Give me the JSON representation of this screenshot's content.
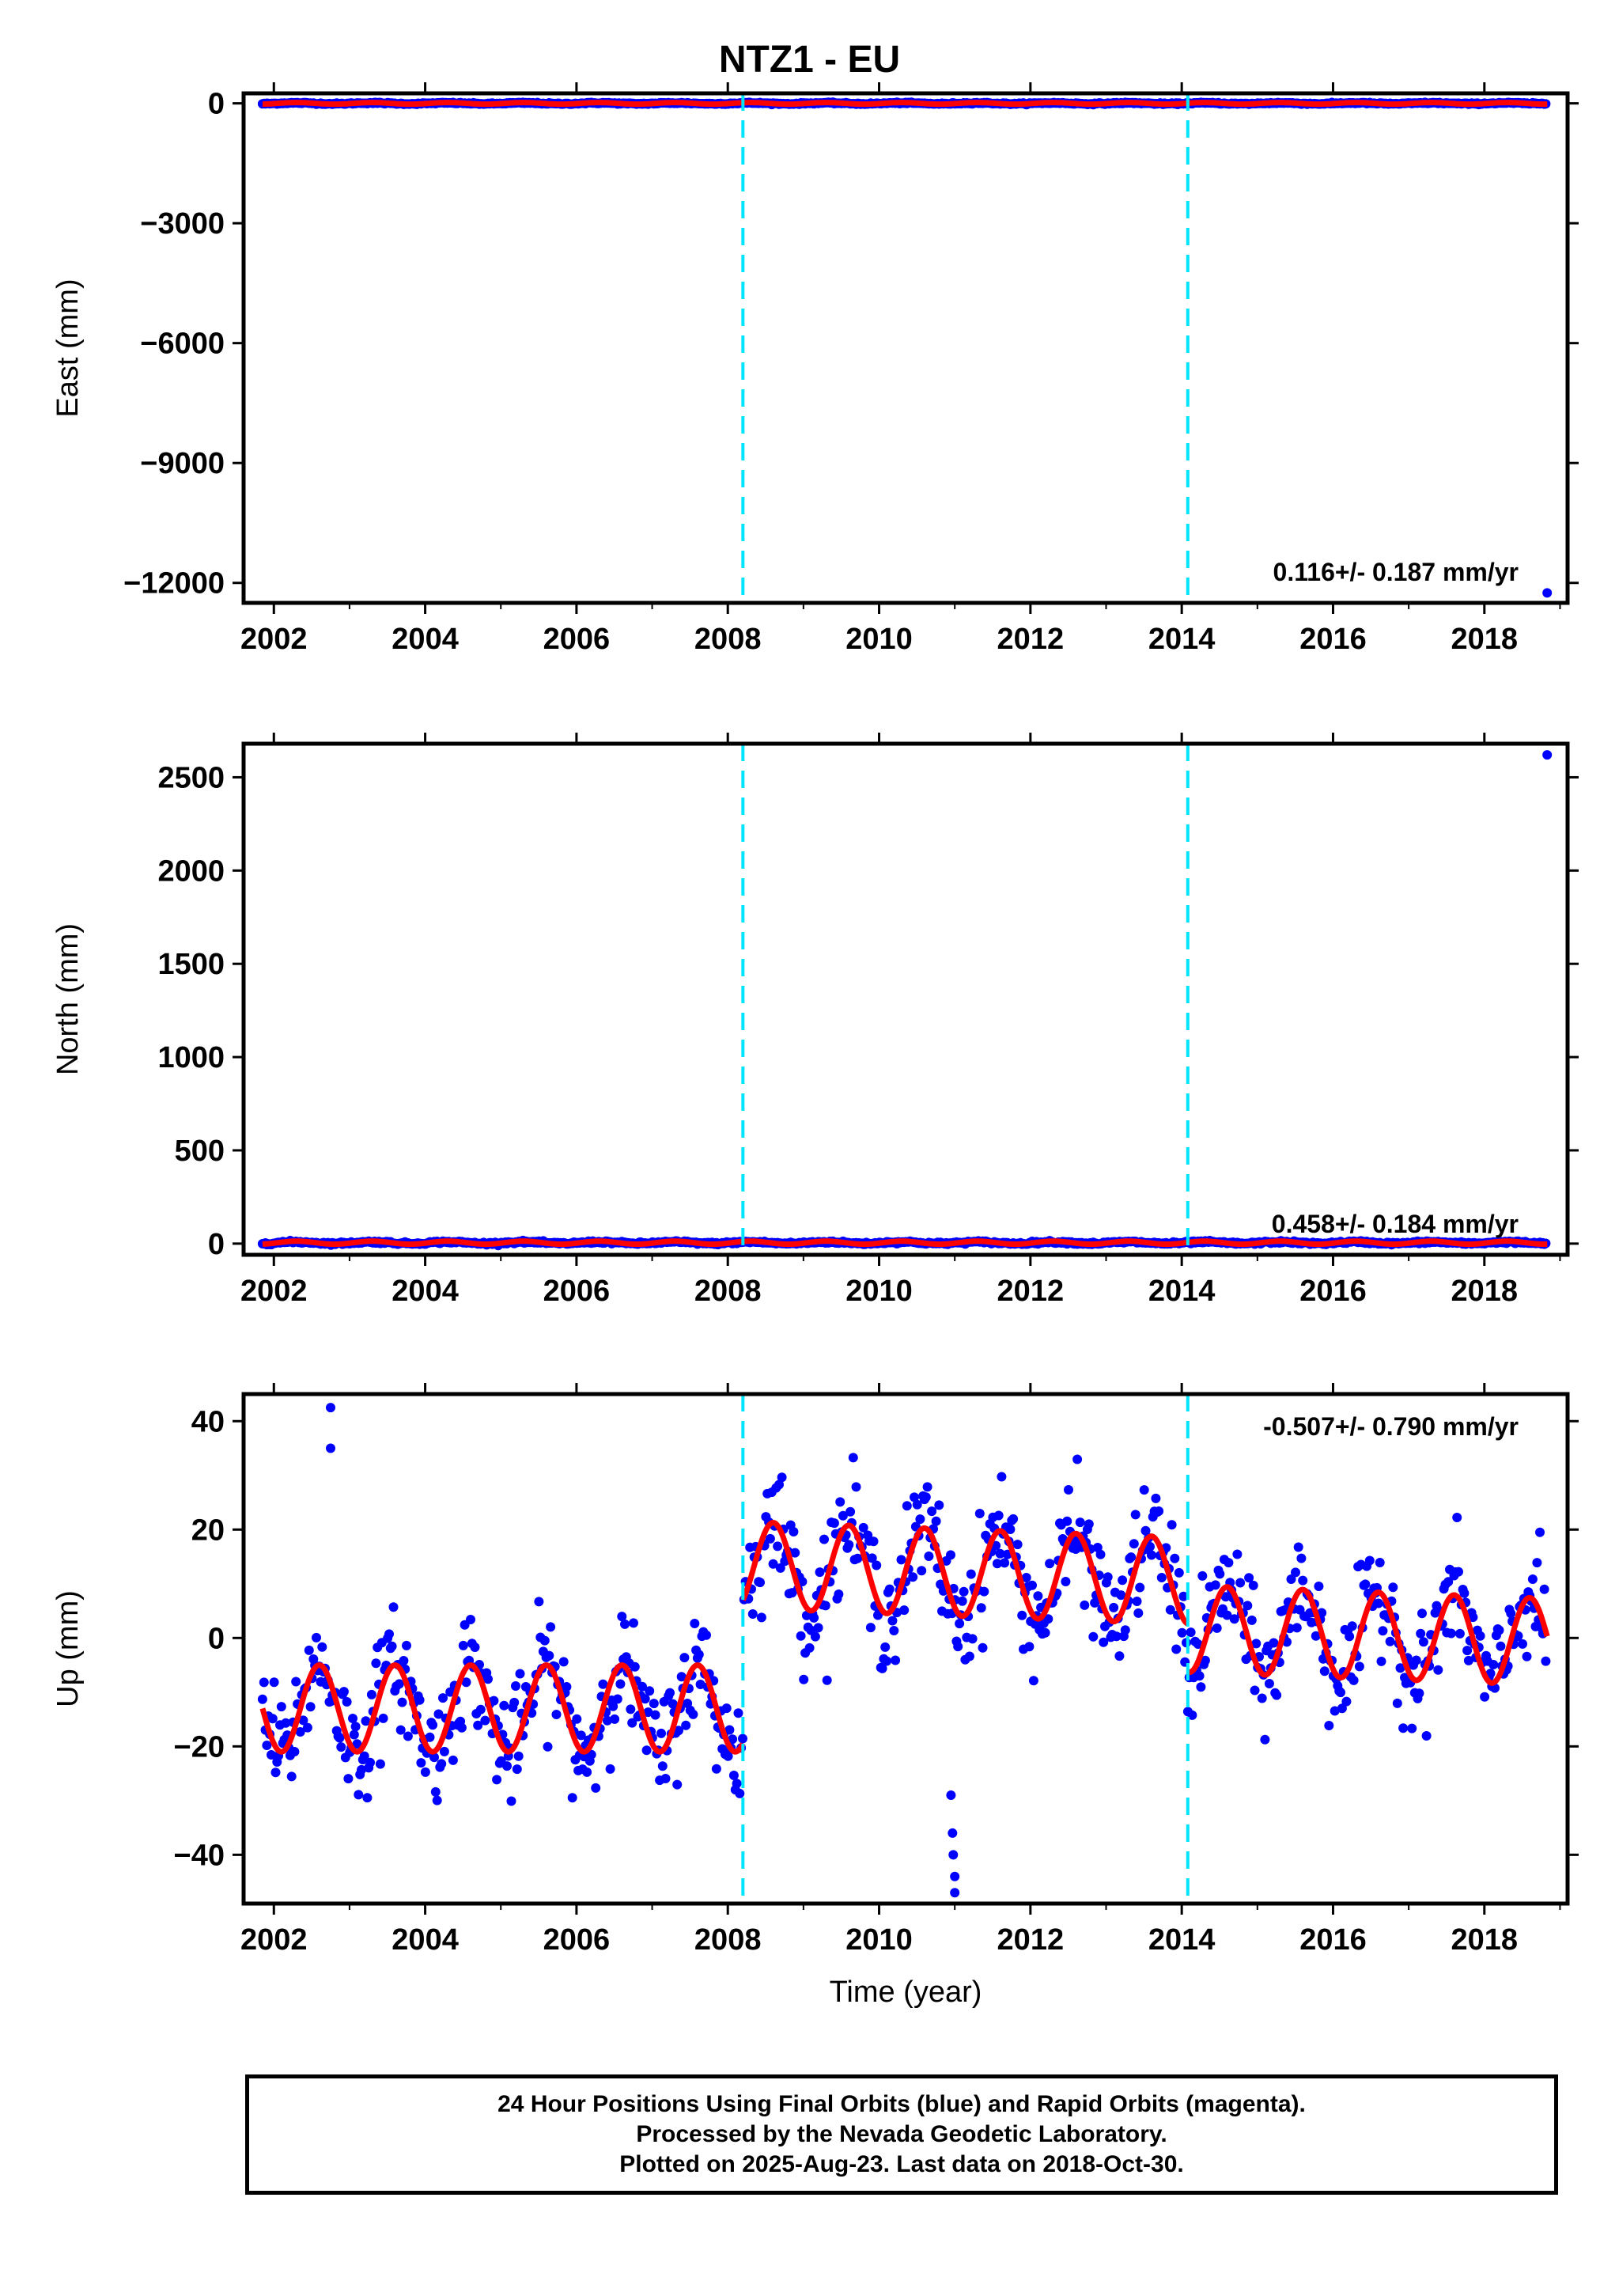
{
  "title": "NTZ1 - EU",
  "colors": {
    "data_points": "#0000ff",
    "model_line": "#ff0000",
    "breaks": "#00e5ff",
    "axes": "#000000"
  },
  "chart_data": [
    {
      "type": "scatter",
      "component": "east",
      "ylabel": "East (mm)",
      "xlabel": "",
      "xlim": [
        2001.6,
        2019.1
      ],
      "ylim": [
        -12500,
        250
      ],
      "xticks": [
        2002,
        2004,
        2006,
        2008,
        2010,
        2012,
        2014,
        2016,
        2018
      ],
      "yticks": [
        -12000,
        -9000,
        -6000,
        -3000,
        0
      ],
      "ytick_labels": [
        "−12000",
        "−9000",
        "−6000",
        "−3000",
        "0"
      ],
      "breaks": [
        2008.2,
        2014.08
      ],
      "rate_label": "0.116+/- 0.187 mm/yr",
      "grid": false,
      "data_range": [
        2001.85,
        2018.83
      ],
      "outliers": [
        {
          "x": 2018.83,
          "y": -12250
        }
      ],
      "model": {
        "mean": 0,
        "amplitude": 20,
        "segments": [
          [
            2001.85,
            2018.83
          ]
        ]
      }
    },
    {
      "type": "scatter",
      "component": "north",
      "ylabel": "North (mm)",
      "xlabel": "",
      "xlim": [
        2001.6,
        2019.1
      ],
      "ylim": [
        -60,
        2680
      ],
      "xticks": [
        2002,
        2004,
        2006,
        2008,
        2010,
        2012,
        2014,
        2016,
        2018
      ],
      "yticks": [
        0,
        500,
        1000,
        1500,
        2000,
        2500
      ],
      "ytick_labels": [
        "0",
        "500",
        "1000",
        "1500",
        "2000",
        "2500"
      ],
      "breaks": [
        2008.2,
        2014.08
      ],
      "rate_label": "0.458+/- 0.184 mm/yr",
      "grid": false,
      "data_range": [
        2001.85,
        2018.83
      ],
      "outliers": [
        {
          "x": 2018.83,
          "y": 2620
        }
      ],
      "model": {
        "mean": 5,
        "amplitude": 8,
        "segments": [
          [
            2001.85,
            2018.83
          ]
        ]
      }
    },
    {
      "type": "scatter",
      "component": "up",
      "ylabel": "Up (mm)",
      "xlabel": "Time (year)",
      "xlim": [
        2001.6,
        2019.1
      ],
      "ylim": [
        -49,
        45
      ],
      "xticks": [
        2002,
        2004,
        2006,
        2008,
        2010,
        2012,
        2014,
        2016,
        2018
      ],
      "yticks": [
        -40,
        -20,
        0,
        20,
        40
      ],
      "ytick_labels": [
        "−40",
        "−20",
        "0",
        "20",
        "40"
      ],
      "breaks": [
        2008.2,
        2014.08
      ],
      "rate_label": "-0.507+/- 0.790 mm/yr",
      "grid": false,
      "data_range": [
        2001.85,
        2018.83
      ],
      "outliers": [
        {
          "x": 2002.75,
          "y": 42.5
        },
        {
          "x": 2002.75,
          "y": 35
        },
        {
          "x": 2010.95,
          "y": -29
        },
        {
          "x": 2010.97,
          "y": -36
        },
        {
          "x": 2010.98,
          "y": -40
        },
        {
          "x": 2011.0,
          "y": -44
        },
        {
          "x": 2011.0,
          "y": -47
        }
      ],
      "model": {
        "amplitude": 8,
        "segments": [
          {
            "x0": 2001.85,
            "x1": 2008.2,
            "mean": -13,
            "slope": 0
          },
          {
            "x0": 2008.2,
            "x1": 2014.08,
            "mean": 12,
            "slope": -0.5
          },
          {
            "x0": 2014.08,
            "x1": 2018.83,
            "mean": 0.5,
            "slope": -0.5
          }
        ]
      }
    }
  ],
  "footer": {
    "line1": "24 Hour Positions Using Final Orbits (blue) and Rapid Orbits (magenta).",
    "line2": "Processed by the Nevada Geodetic Laboratory.",
    "line3": "Plotted on 2025-Aug-23. Last data on 2018-Oct-30."
  }
}
